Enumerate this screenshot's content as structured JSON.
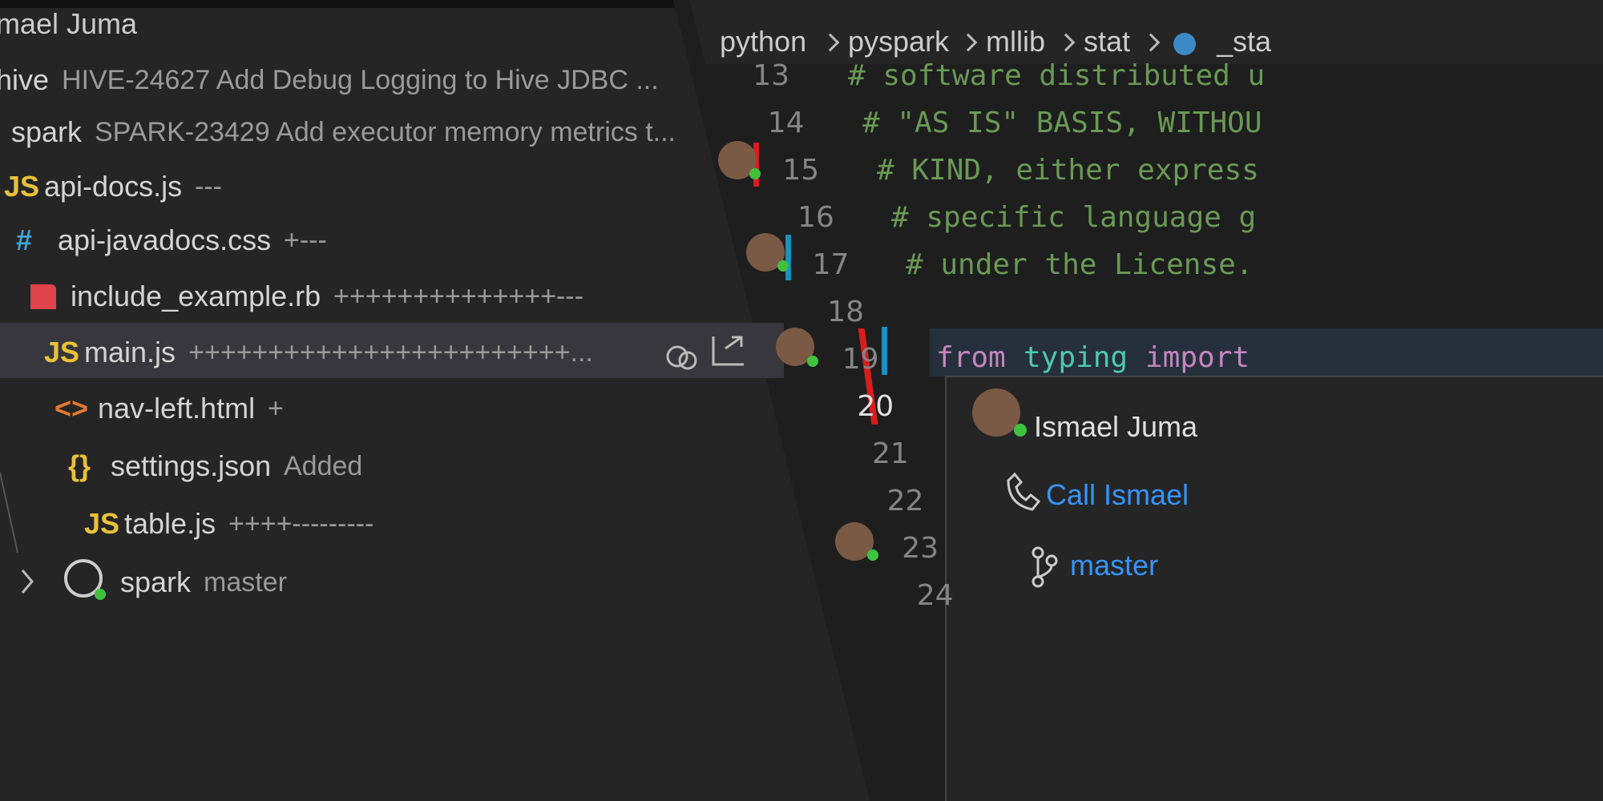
{
  "sidebar": {
    "header": "mael Juma",
    "items": [
      {
        "name": "hive",
        "detail": "HIVE-24627 Add Debug Logging to Hive JDBC ..."
      },
      {
        "name": "spark",
        "detail": "SPARK-23429 Add executor memory metrics t..."
      },
      {
        "icon": "JS",
        "name": "api-docs.js",
        "detail": "---"
      },
      {
        "icon": "#",
        "name": "api-javadocs.css",
        "detail": "+---"
      },
      {
        "name": "include_example.rb",
        "detail": "++++++++++++++---"
      },
      {
        "icon": "JS",
        "name": "main.js",
        "detail": "++++++++++++++++++++++++..."
      },
      {
        "icon": "<>",
        "name": "nav-left.html",
        "detail": "+"
      },
      {
        "icon": "{}",
        "name": "settings.json",
        "detail": "Added"
      },
      {
        "icon": "JS",
        "name": "table.js",
        "detail": "++++---------"
      },
      {
        "name": "spark",
        "detail": "master"
      }
    ]
  },
  "breadcrumb": [
    "python",
    "pyspark",
    "mllib",
    "stat",
    "_sta"
  ],
  "code": {
    "lines": [
      {
        "number": 13,
        "text": "# software distributed u"
      },
      {
        "number": 14,
        "text": "# \"AS IS\" BASIS, WITHOU"
      },
      {
        "number": 15,
        "text": "# KIND, either express"
      },
      {
        "number": 16,
        "text": "# specific language g"
      },
      {
        "number": 17,
        "text": "# under the License."
      },
      {
        "number": 18
      },
      {
        "number": 19,
        "tokens": [
          "from",
          "typing",
          "import"
        ]
      },
      {
        "number": 20
      },
      {
        "number": 21
      },
      {
        "number": 22
      },
      {
        "number": 23
      },
      {
        "number": 24
      }
    ]
  },
  "hover": {
    "name": "Ismael Juma",
    "actions": [
      "Call Ismael",
      "master"
    ]
  }
}
